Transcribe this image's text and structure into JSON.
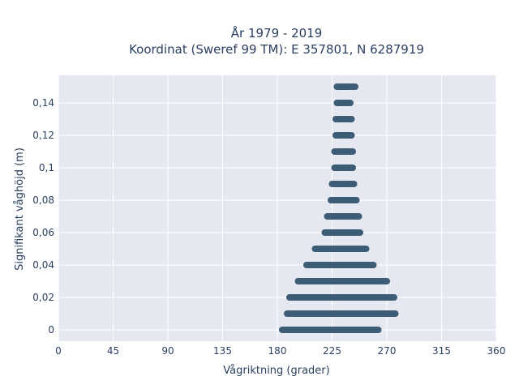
{
  "chart_data": {
    "type": "scatter",
    "title_line1": "År 1979 - 2019",
    "title_line2": "Koordinat (Sweref 99 TM): E 357801, N 6287919",
    "xlabel": "Vågriktning (grader)",
    "ylabel": "Signifikant våghöjd (m)",
    "xlim": [
      0,
      360
    ],
    "ylim": [
      -0.007,
      0.157
    ],
    "x_ticks": [
      0,
      45,
      90,
      135,
      180,
      225,
      270,
      315,
      360
    ],
    "x_tick_labels": [
      "0",
      "45",
      "90",
      "135",
      "180",
      "225",
      "270",
      "315",
      "360"
    ],
    "y_ticks": [
      0,
      0.02,
      0.04,
      0.06,
      0.08,
      0.1,
      0.12,
      0.14
    ],
    "y_tick_labels": [
      "0",
      "0,02",
      "0,04",
      "0,06",
      "0,08",
      "0,1",
      "0,12",
      "0,14"
    ],
    "grid": true,
    "marker_color": "#34546e",
    "plot_bg": "#e5e8f1",
    "bands": [
      {
        "y": 0.0,
        "xmin": 184,
        "xmax": 263
      },
      {
        "y": 0.01,
        "xmin": 188,
        "xmax": 277
      },
      {
        "y": 0.02,
        "xmin": 190,
        "xmax": 276
      },
      {
        "y": 0.03,
        "xmin": 197,
        "xmax": 270
      },
      {
        "y": 0.04,
        "xmin": 204,
        "xmax": 259
      },
      {
        "y": 0.05,
        "xmin": 211,
        "xmax": 253
      },
      {
        "y": 0.06,
        "xmin": 219,
        "xmax": 248
      },
      {
        "y": 0.07,
        "xmin": 221,
        "xmax": 247
      },
      {
        "y": 0.08,
        "xmin": 224,
        "xmax": 245
      },
      {
        "y": 0.09,
        "xmin": 225,
        "xmax": 243
      },
      {
        "y": 0.1,
        "xmin": 227,
        "xmax": 242
      },
      {
        "y": 0.11,
        "xmin": 227,
        "xmax": 242
      },
      {
        "y": 0.12,
        "xmin": 228,
        "xmax": 241
      },
      {
        "y": 0.13,
        "xmin": 228,
        "xmax": 241
      },
      {
        "y": 0.14,
        "xmin": 229,
        "xmax": 240
      },
      {
        "y": 0.15,
        "xmin": 229,
        "xmax": 244
      }
    ]
  }
}
